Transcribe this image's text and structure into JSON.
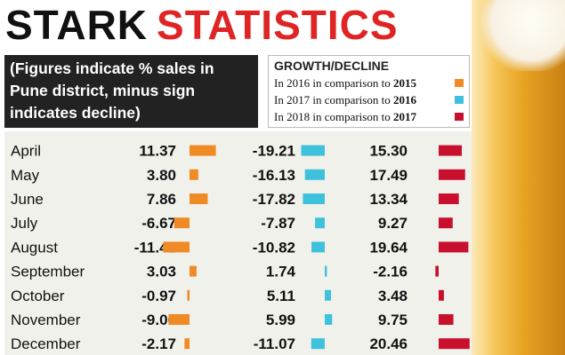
{
  "header": {
    "title_part1": "STARK",
    "title_part2": "STATISTICS",
    "subtitle_lines": [
      "(Figures indicate % sales in",
      "Pune district, minus sign",
      "indicates decline)"
    ]
  },
  "legend": {
    "title": "GROWTH/DECLINE",
    "items": [
      {
        "prefix": "In 2016 in comparison to ",
        "year": "2015",
        "color": "#f08a24"
      },
      {
        "prefix": "In 2017 in comparison to ",
        "year": "2016",
        "color": "#3ec1dd"
      },
      {
        "prefix": "In 2018 in comparison to ",
        "year": "2017",
        "color": "#c8102e"
      }
    ]
  },
  "chart_data": {
    "type": "bar",
    "categories": [
      "April",
      "May",
      "June",
      "July",
      "August",
      "September",
      "October",
      "November",
      "December"
    ],
    "series": [
      {
        "name": "In 2016 in comparison to 2015",
        "color": "#f08a24",
        "values": [
          11.37,
          3.8,
          7.86,
          -6.67,
          -11.41,
          3.03,
          -0.97,
          -9.06,
          -2.17
        ],
        "labels": [
          "11.37",
          "3.80",
          "7.86",
          "-6.67",
          "-11.41",
          "3.03",
          "-0.97",
          "-9.06",
          "-2.17"
        ]
      },
      {
        "name": "In 2017 in comparison to 2016",
        "color": "#3ec1dd",
        "values": [
          -19.21,
          -16.13,
          -17.82,
          -7.87,
          -10.82,
          1.74,
          5.11,
          5.99,
          -11.07
        ],
        "labels": [
          "-19.21",
          "-16.13",
          "-17.82",
          "-7.87",
          "-10.82",
          "1.74",
          "5.11",
          "5.99",
          "-11.07"
        ]
      },
      {
        "name": "In 2018 in comparison to 2017",
        "color": "#c8102e",
        "values": [
          15.3,
          17.49,
          13.34,
          9.27,
          19.64,
          -2.16,
          3.48,
          9.75,
          20.46
        ],
        "labels": [
          "15.30",
          "17.49",
          "13.34",
          "9.27",
          "19.64",
          "-2.16",
          "3.48",
          "9.75",
          "20.46"
        ]
      }
    ]
  }
}
